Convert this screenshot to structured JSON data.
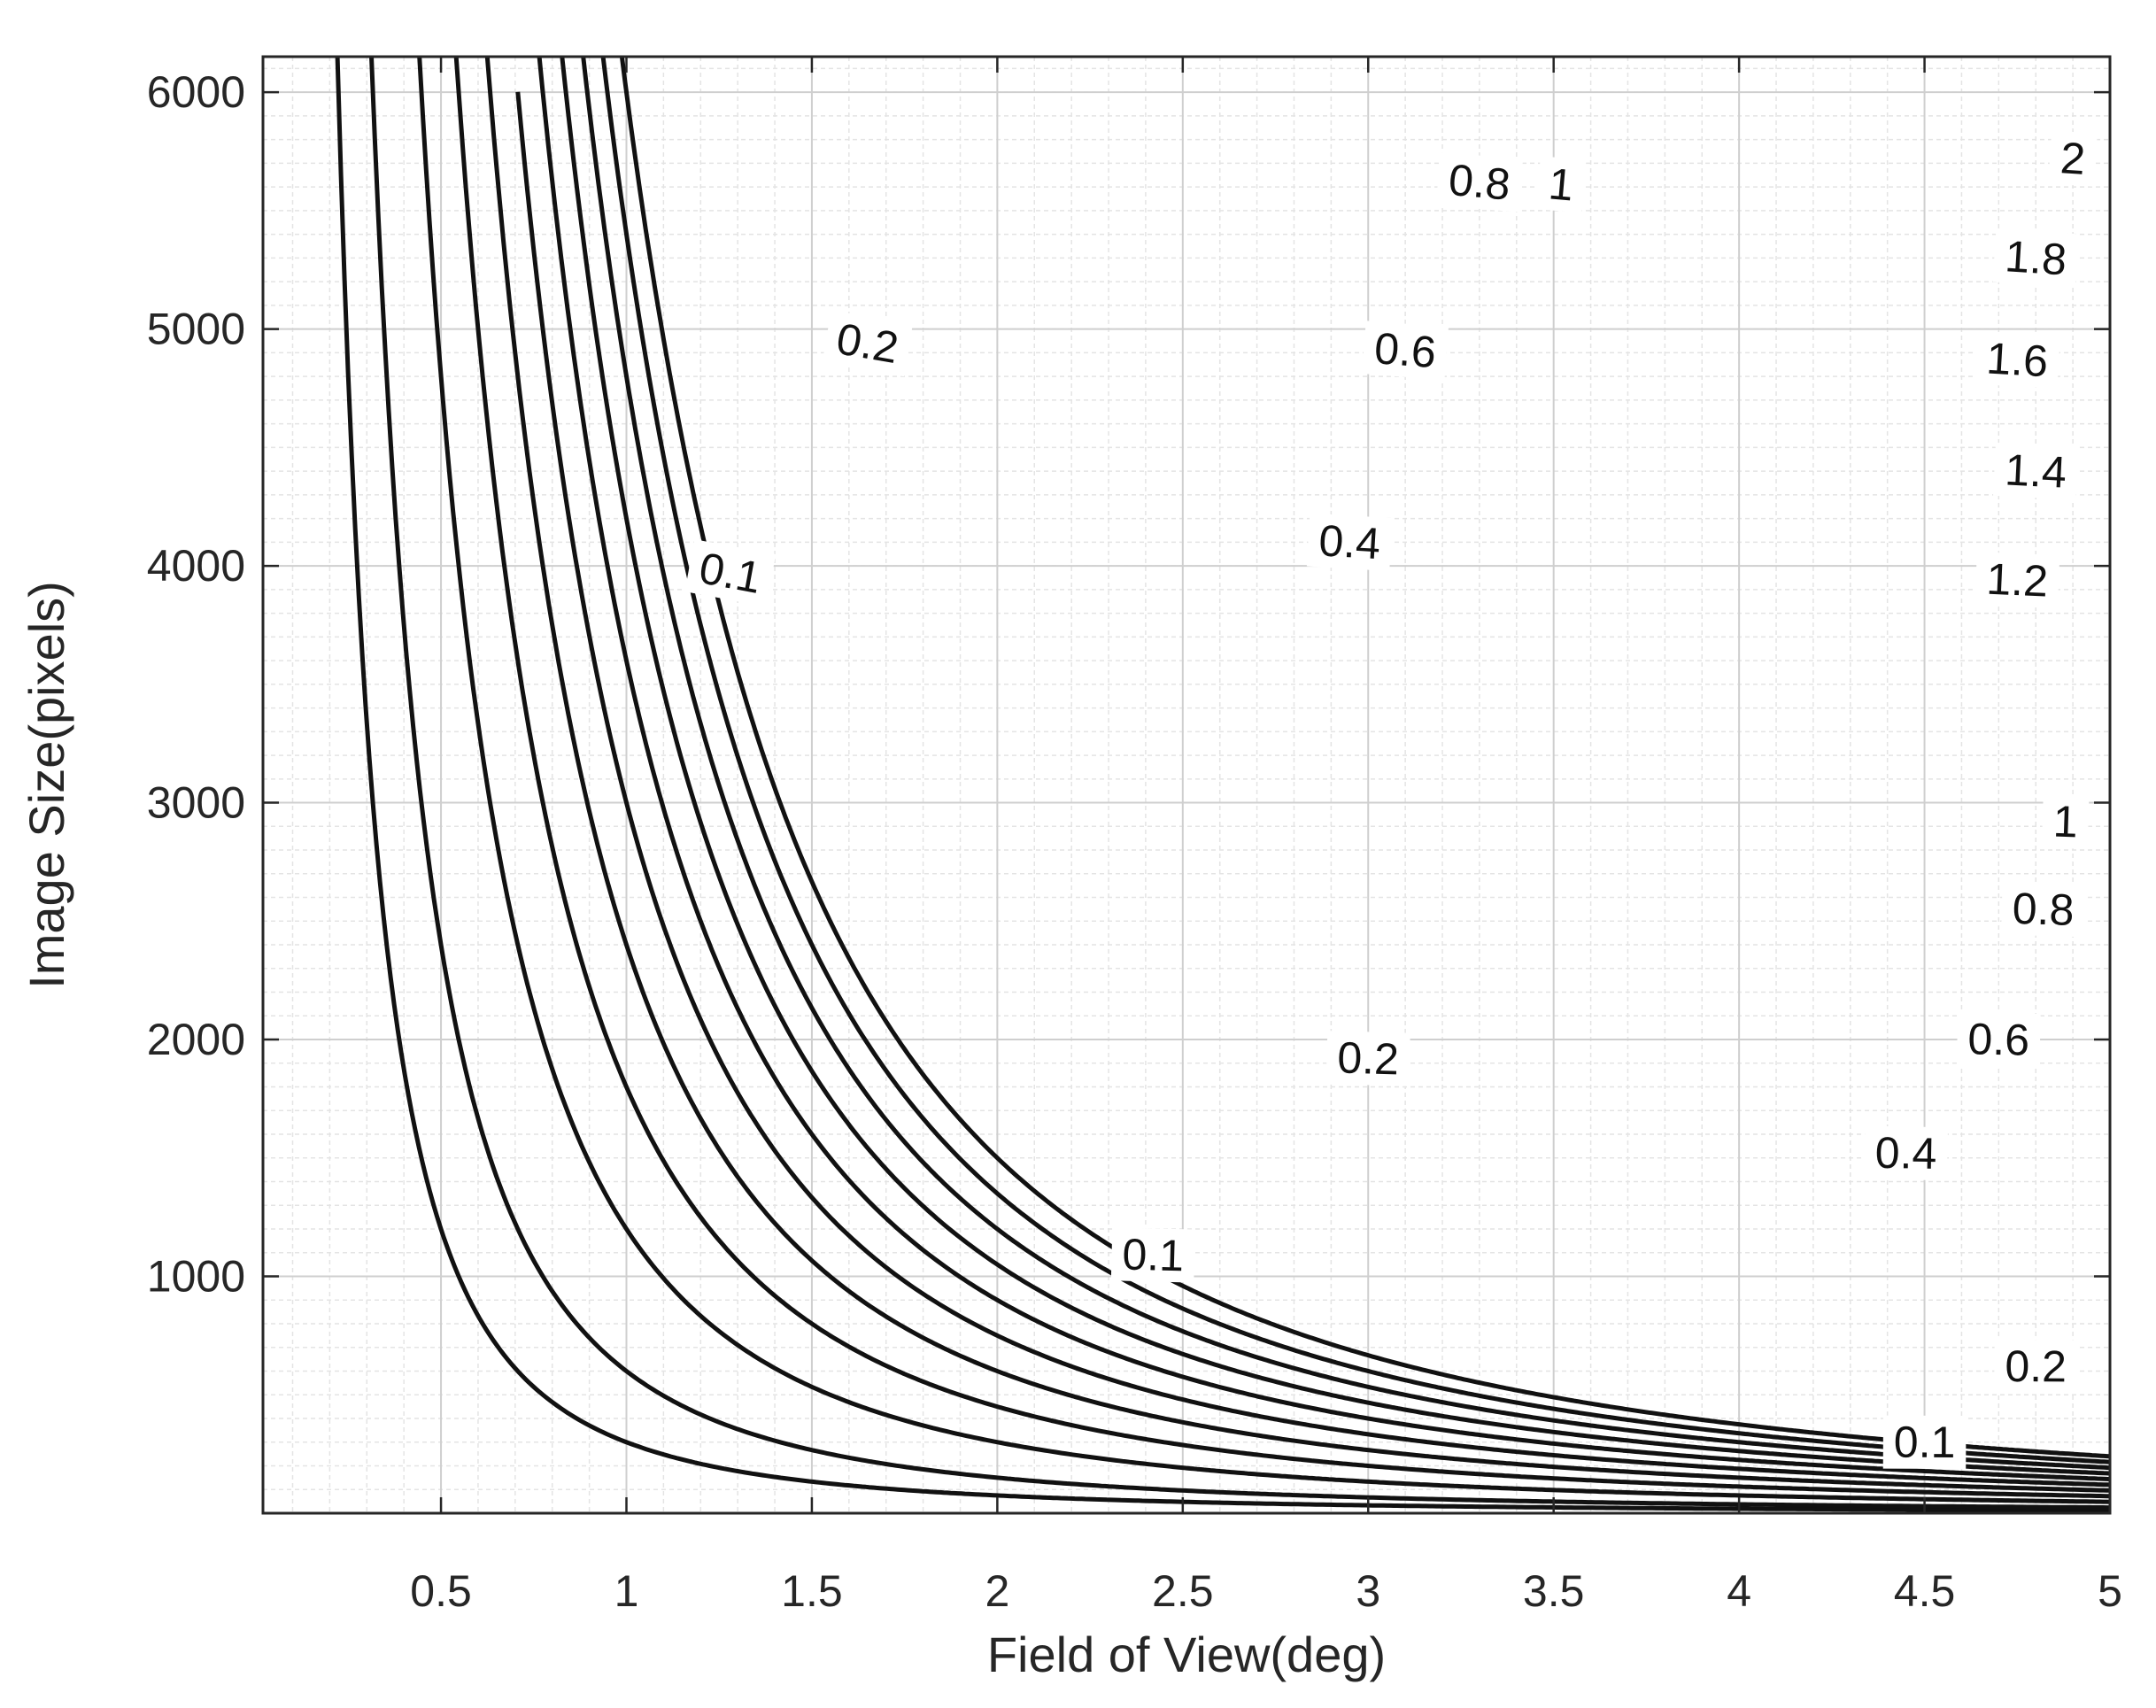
{
  "chart_data": {
    "type": "contour",
    "title": "",
    "xlabel": "Field of View(deg)",
    "ylabel": "Image Size(pixels)",
    "xlim": [
      0.02,
      5
    ],
    "ylim": [
      0,
      6150
    ],
    "x_ticks": [
      {
        "value": 0.5,
        "label": "0.5"
      },
      {
        "value": 1,
        "label": "1"
      },
      {
        "value": 1.5,
        "label": "1.5"
      },
      {
        "value": 2,
        "label": "2"
      },
      {
        "value": 2.5,
        "label": "2.5"
      },
      {
        "value": 3,
        "label": "3"
      },
      {
        "value": 3.5,
        "label": "3.5"
      },
      {
        "value": 4,
        "label": "4"
      },
      {
        "value": 4.5,
        "label": "4.5"
      },
      {
        "value": 5,
        "label": "5"
      }
    ],
    "y_ticks": [
      {
        "value": 1000,
        "label": "1000"
      },
      {
        "value": 2000,
        "label": "2000"
      },
      {
        "value": 3000,
        "label": "3000"
      },
      {
        "value": 4000,
        "label": "4000"
      },
      {
        "value": 5000,
        "label": "5000"
      },
      {
        "value": 6000,
        "label": "6000"
      }
    ],
    "grid": true,
    "minor_grid": true,
    "levels": [
      {
        "value": 0.1,
        "label": "0.1",
        "label_points": [
          [
            1.28,
            3970
          ],
          [
            2.42,
            1090
          ],
          [
            4.5,
            300
          ]
        ]
      },
      {
        "value": 0.2,
        "label": "0.2",
        "label_points": [
          [
            1.65,
            4940
          ],
          [
            3.0,
            1920
          ],
          [
            4.8,
            620
          ]
        ]
      },
      {
        "value": 0.4,
        "label": "0.4",
        "label_points": [
          [
            2.95,
            4100
          ],
          [
            4.45,
            1520
          ]
        ]
      },
      {
        "value": 0.6,
        "label": "0.6",
        "label_points": [
          [
            3.1,
            4910
          ],
          [
            4.7,
            2000
          ]
        ]
      },
      {
        "value": 0.8,
        "label": "0.8",
        "label_points": [
          [
            3.3,
            5620
          ],
          [
            4.82,
            2550
          ]
        ]
      },
      {
        "value": 1.0,
        "label": "1",
        "label_points": [
          [
            3.52,
            5610
          ],
          [
            4.88,
            2920
          ]
        ]
      },
      {
        "value": 1.2,
        "label": "1.2",
        "label_points": [
          [
            4.75,
            3940
          ]
        ]
      },
      {
        "value": 1.4,
        "label": "1.4",
        "label_points": [
          [
            4.8,
            4400
          ]
        ]
      },
      {
        "value": 1.6,
        "label": "1.6",
        "label_points": [
          [
            4.75,
            4870
          ]
        ]
      },
      {
        "value": 1.8,
        "label": "1.8",
        "label_points": [
          [
            4.8,
            5300
          ]
        ]
      },
      {
        "value": 2.0,
        "label": "2",
        "label_points": [
          [
            4.9,
            5720
          ]
        ]
      }
    ]
  }
}
